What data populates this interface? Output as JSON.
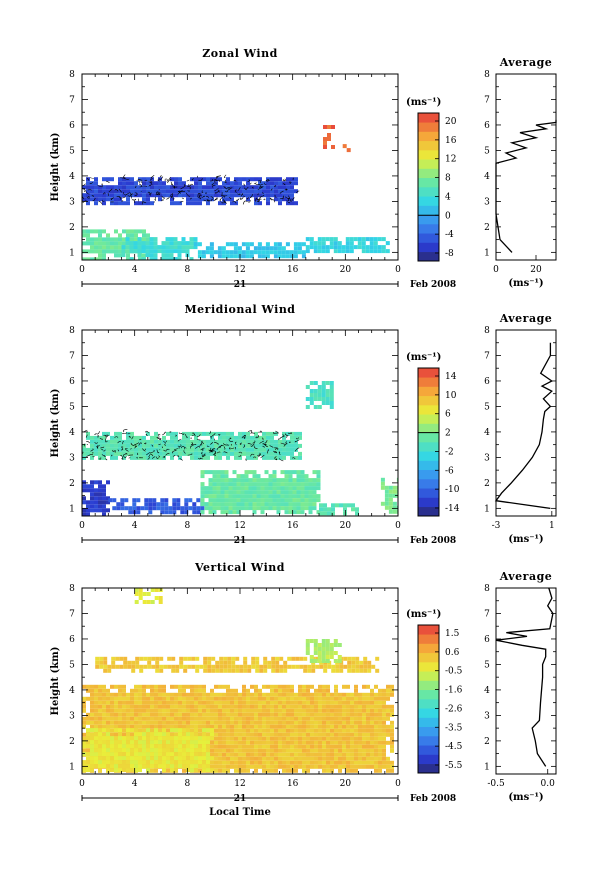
{
  "chart_data": [
    {
      "type": "heatmap",
      "title": "Zonal Wind",
      "ylabel": "Height (km)",
      "xlabel": "",
      "xlim": [
        0,
        24
      ],
      "ylim": [
        0.7,
        8
      ],
      "xticks": [
        "0",
        "4",
        "8",
        "12",
        "16",
        "20",
        "0"
      ],
      "yticks": [
        "1",
        "2",
        "3",
        "4",
        "5",
        "6",
        "7",
        "8"
      ],
      "date_label": "21",
      "month_label": "Feb 2008",
      "unit": "(ms⁻¹)",
      "colorbar_ticks": [
        "20",
        "16",
        "12",
        "8",
        "4",
        "0",
        "-4",
        "-8"
      ],
      "colorbar_range": [
        -10,
        22
      ],
      "regions": [
        {
          "x": [
            0,
            16.3
          ],
          "y": [
            2.95,
            3.95
          ],
          "value": -6,
          "contours": true
        },
        {
          "x": [
            0,
            5
          ],
          "y": [
            0.8,
            1.9
          ],
          "value": 7
        },
        {
          "x": [
            3,
            8.5
          ],
          "y": [
            0.8,
            1.6
          ],
          "value": 4
        },
        {
          "x": [
            8.5,
            17
          ],
          "y": [
            0.8,
            1.4
          ],
          "value": 2
        },
        {
          "x": [
            17,
            23.3
          ],
          "y": [
            1.0,
            1.6
          ],
          "value": 3
        },
        {
          "x": [
            18.3,
            19.2
          ],
          "y": [
            5.2,
            6.0
          ],
          "value": 20
        },
        {
          "x": [
            19.8,
            20.4
          ],
          "y": [
            5.05,
            5.25
          ],
          "value": 20
        }
      ],
      "profile": {
        "title": "Average",
        "xlabel": "(ms⁻¹)",
        "xlim": [
          0,
          30
        ],
        "xticks": [
          "0",
          "20"
        ],
        "yticks": [
          "1",
          "2",
          "3",
          "4",
          "5",
          "6",
          "7",
          "8"
        ],
        "x": [
          8,
          2,
          1,
          0,
          0,
          0,
          0,
          0,
          10,
          5,
          15,
          8,
          20,
          12,
          25,
          20,
          30,
          30
        ],
        "y": [
          1.0,
          1.5,
          2.0,
          2.5,
          3.0,
          3.5,
          4.0,
          4.5,
          4.7,
          4.9,
          5.1,
          5.3,
          5.5,
          5.7,
          5.85,
          6.0,
          6.1,
          6.2
        ]
      }
    },
    {
      "type": "heatmap",
      "title": "Meridional Wind",
      "ylabel": "Height (km)",
      "xlabel": "",
      "xlim": [
        0,
        24
      ],
      "ylim": [
        0.7,
        8
      ],
      "xticks": [
        "0",
        "4",
        "8",
        "12",
        "16",
        "20",
        "0"
      ],
      "yticks": [
        "1",
        "2",
        "3",
        "4",
        "5",
        "6",
        "7",
        "8"
      ],
      "date_label": "21",
      "month_label": "Feb 2008",
      "unit": "(ms⁻¹)",
      "colorbar_ticks": [
        "14",
        "10",
        "6",
        "2",
        "-2",
        "-6",
        "-10",
        "-14"
      ],
      "colorbar_range": [
        -16,
        16
      ],
      "regions": [
        {
          "x": [
            0,
            16.5
          ],
          "y": [
            2.95,
            4.0
          ],
          "value": 0,
          "contours": true
        },
        {
          "x": [
            0,
            2
          ],
          "y": [
            0.8,
            2.1
          ],
          "value": -13
        },
        {
          "x": [
            2,
            9
          ],
          "y": [
            0.8,
            1.4
          ],
          "value": -11
        },
        {
          "x": [
            9,
            18
          ],
          "y": [
            0.8,
            2.5
          ],
          "value": 1
        },
        {
          "x": [
            18,
            21
          ],
          "y": [
            0.8,
            1.2
          ],
          "value": 0
        },
        {
          "x": [
            22.7,
            24
          ],
          "y": [
            0.8,
            2.2
          ],
          "value": 2
        },
        {
          "x": [
            17,
            19
          ],
          "y": [
            5.0,
            6.0
          ],
          "value": -1
        }
      ],
      "profile": {
        "title": "Average",
        "xlabel": "(ms⁻¹)",
        "xlim": [
          -3,
          1.3
        ],
        "xticks": [
          "-3",
          "1"
        ],
        "yticks": [
          "1",
          "2",
          "3",
          "4",
          "5",
          "6",
          "7",
          "8"
        ],
        "x": [
          0.9,
          -3,
          -2.6,
          -1.9,
          -1.1,
          -0.4,
          0.1,
          0.3,
          0.4,
          0.5,
          0.9,
          0.4,
          1.0,
          0.3,
          1.0,
          0.2,
          0.9,
          0.9
        ],
        "y": [
          1.0,
          1.3,
          1.6,
          2.0,
          2.5,
          3.0,
          3.5,
          4.0,
          4.5,
          4.8,
          5.0,
          5.3,
          5.6,
          5.8,
          6.0,
          6.3,
          7.0,
          7.5
        ]
      }
    },
    {
      "type": "heatmap",
      "title": "Vertical Wind",
      "ylabel": "Height (km)",
      "xlabel": "Local Time",
      "xlim": [
        0,
        24
      ],
      "ylim": [
        0.7,
        8
      ],
      "xticks": [
        "0",
        "4",
        "8",
        "12",
        "16",
        "20",
        "0"
      ],
      "yticks": [
        "1",
        "2",
        "3",
        "4",
        "5",
        "6",
        "7",
        "8"
      ],
      "date_label": "21",
      "month_label": "Feb 2008",
      "unit": "(ms⁻¹)",
      "colorbar_ticks": [
        "1.5",
        "0.6",
        "-0.5",
        "-1.6",
        "-2.6",
        "-3.5",
        "-4.5",
        "-5.5"
      ],
      "colorbar_range": [
        -6,
        2
      ],
      "regions": [
        {
          "x": [
            0,
            23.5
          ],
          "y": [
            0.8,
            4.2
          ],
          "value": 0.3
        },
        {
          "x": [
            0,
            10
          ],
          "y": [
            0.8,
            2.5
          ],
          "value": -0.3
        },
        {
          "x": [
            1,
            22.5
          ],
          "y": [
            4.7,
            5.3
          ],
          "value": 0.2
        },
        {
          "x": [
            17,
            19.5
          ],
          "y": [
            5.2,
            6.0
          ],
          "value": -0.9
        },
        {
          "x": [
            4,
            6
          ],
          "y": [
            7.5,
            8.0
          ],
          "value": -0.4
        }
      ],
      "profile": {
        "title": "Average",
        "xlabel": "(ms⁻¹)",
        "xlim": [
          -0.5,
          0.08
        ],
        "xticks": [
          "-0.5",
          "0.0"
        ],
        "yticks": [
          "1",
          "2",
          "3",
          "4",
          "5",
          "6",
          "7",
          "8"
        ],
        "x": [
          -0.02,
          -0.1,
          -0.12,
          -0.15,
          -0.08,
          -0.07,
          -0.05,
          -0.05,
          -0.02,
          -0.02,
          -0.25,
          -0.5,
          -0.2,
          -0.4,
          0.02,
          0.05,
          0.0,
          0.04,
          0.01
        ],
        "y": [
          1.0,
          1.5,
          2.0,
          2.5,
          2.8,
          3.5,
          4.5,
          5.0,
          5.3,
          5.6,
          5.75,
          5.95,
          6.1,
          6.25,
          6.4,
          7.0,
          7.3,
          7.6,
          8.0
        ]
      }
    }
  ]
}
